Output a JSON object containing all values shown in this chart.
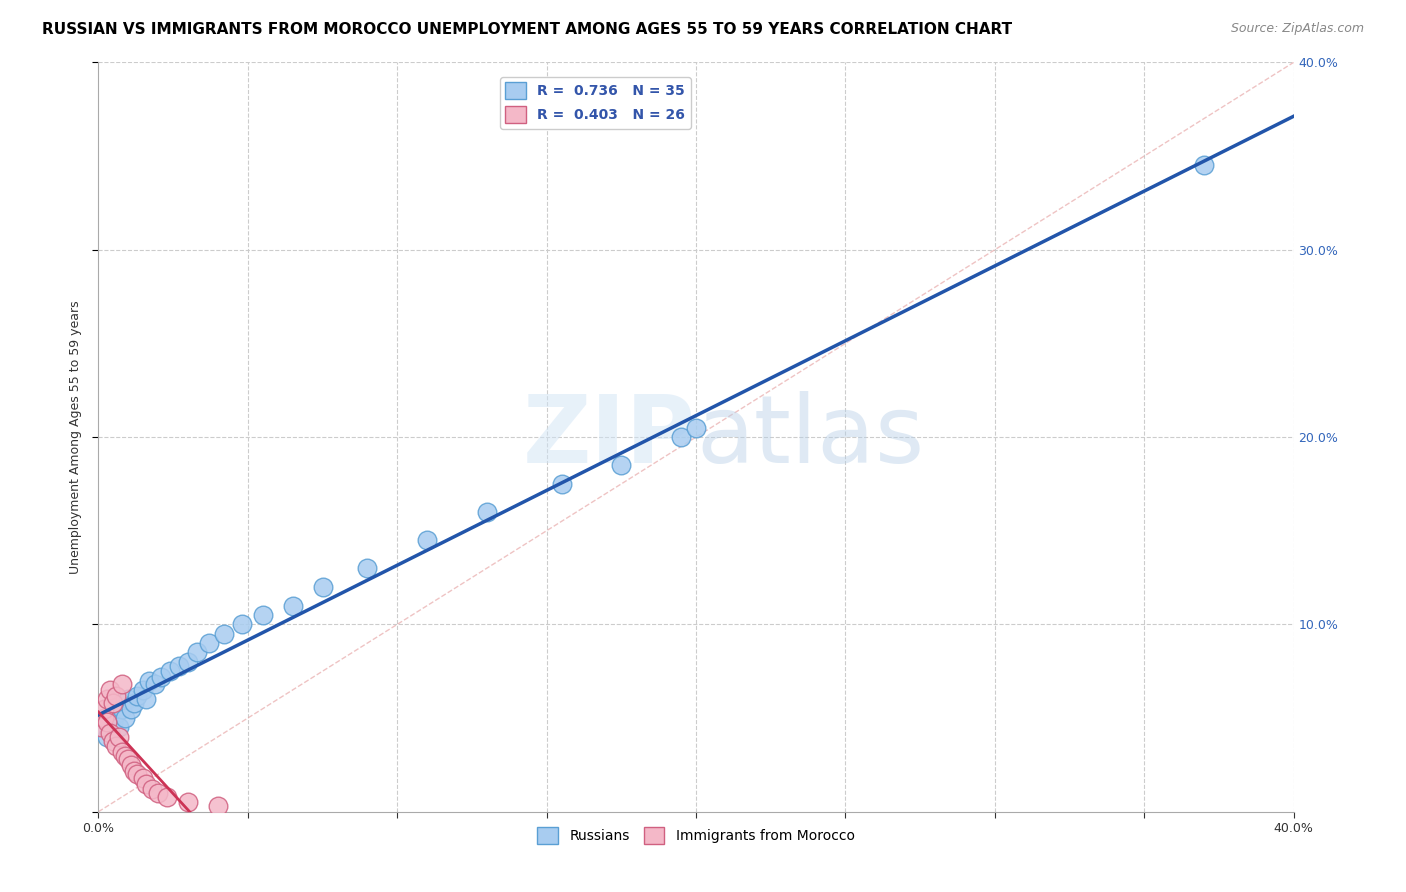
{
  "title": "RUSSIAN VS IMMIGRANTS FROM MOROCCO UNEMPLOYMENT AMONG AGES 55 TO 59 YEARS CORRELATION CHART",
  "source": "Source: ZipAtlas.com",
  "ylabel": "Unemployment Among Ages 55 to 59 years",
  "xlim": [
    0.0,
    0.4
  ],
  "ylim": [
    0.0,
    0.4
  ],
  "grid_color": "#cccccc",
  "watermark_text": "ZIPatlas",
  "russian_color": "#A8CCF0",
  "russian_edge_color": "#5A9FD4",
  "morocco_color": "#F4B8C8",
  "morocco_edge_color": "#D06080",
  "R_russian": 0.736,
  "N_russian": 35,
  "R_morocco": 0.403,
  "N_morocco": 26,
  "legend_label_russian": "Russians",
  "legend_label_morocco": "Immigrants from Morocco",
  "ref_line_color": "#cccccc",
  "russian_line_color": "#2255AA",
  "morocco_line_color": "#CC3355",
  "title_fontsize": 11,
  "axis_label_fontsize": 9,
  "tick_fontsize": 9,
  "legend_fontsize": 10,
  "russians_x": [
    0.002,
    0.003,
    0.004,
    0.005,
    0.006,
    0.007,
    0.008,
    0.009,
    0.01,
    0.011,
    0.012,
    0.013,
    0.015,
    0.016,
    0.017,
    0.019,
    0.021,
    0.024,
    0.027,
    0.03,
    0.033,
    0.037,
    0.042,
    0.048,
    0.055,
    0.065,
    0.075,
    0.09,
    0.11,
    0.13,
    0.155,
    0.175,
    0.195,
    0.37,
    0.2
  ],
  "russians_y": [
    0.045,
    0.04,
    0.05,
    0.048,
    0.052,
    0.045,
    0.055,
    0.05,
    0.06,
    0.055,
    0.058,
    0.062,
    0.065,
    0.06,
    0.07,
    0.068,
    0.072,
    0.075,
    0.078,
    0.08,
    0.085,
    0.09,
    0.095,
    0.1,
    0.105,
    0.11,
    0.12,
    0.13,
    0.145,
    0.16,
    0.175,
    0.185,
    0.2,
    0.345,
    0.205
  ],
  "morocco_x": [
    0.001,
    0.002,
    0.002,
    0.003,
    0.003,
    0.004,
    0.004,
    0.005,
    0.005,
    0.006,
    0.006,
    0.007,
    0.008,
    0.008,
    0.009,
    0.01,
    0.011,
    0.012,
    0.013,
    0.015,
    0.016,
    0.018,
    0.02,
    0.023,
    0.03,
    0.04
  ],
  "morocco_y": [
    0.045,
    0.05,
    0.055,
    0.048,
    0.06,
    0.042,
    0.065,
    0.038,
    0.058,
    0.035,
    0.062,
    0.04,
    0.032,
    0.068,
    0.03,
    0.028,
    0.025,
    0.022,
    0.02,
    0.018,
    0.015,
    0.012,
    0.01,
    0.008,
    0.005,
    0.003
  ]
}
